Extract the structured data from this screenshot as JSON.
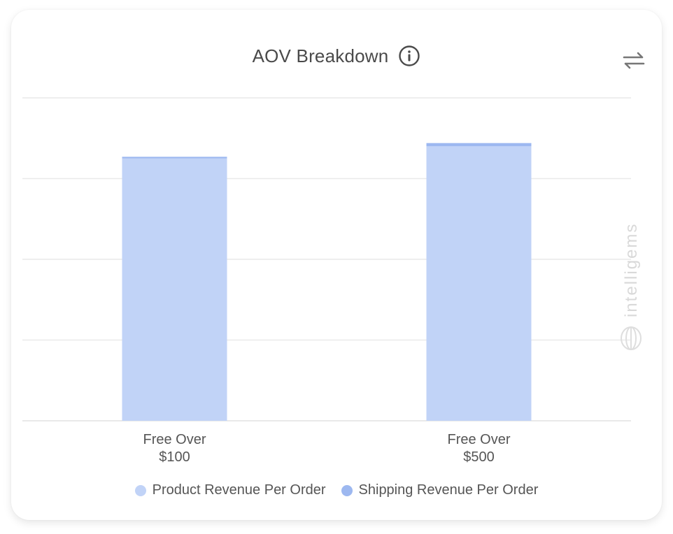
{
  "header": {
    "title": "AOV Breakdown",
    "info_icon": "info-circle-icon",
    "swap_icon": "swap-arrows-icon"
  },
  "watermark": {
    "text": "intelligems",
    "icon": "intelligems-logo-icon"
  },
  "colors": {
    "product": "#c1d3f7",
    "shipping": "#9db8f0",
    "grid": "#e9e9e9",
    "text": "#555555"
  },
  "legend": {
    "items": [
      {
        "label": "Product Revenue Per Order",
        "color": "#c1d3f7"
      },
      {
        "label": "Shipping Revenue Per Order",
        "color": "#9db8f0"
      }
    ]
  },
  "chart_data": {
    "type": "bar",
    "stacked": true,
    "categories": [
      [
        "Free Over",
        "$100"
      ],
      [
        "Free Over",
        "$500"
      ]
    ],
    "series": [
      {
        "name": "Product Revenue Per Order",
        "values": [
          3.25,
          3.4
        ]
      },
      {
        "name": "Shipping Revenue Per Order",
        "values": [
          0.02,
          0.04
        ]
      }
    ],
    "ylim": [
      0,
      4
    ],
    "y_ticks": [
      0,
      1,
      2,
      3,
      4
    ],
    "grid": true,
    "legend_position": "bottom"
  }
}
